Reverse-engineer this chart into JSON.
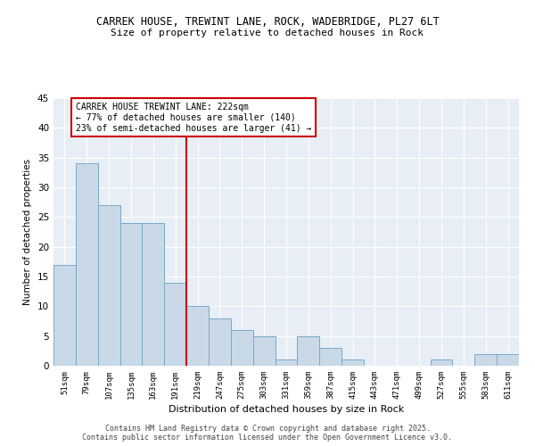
{
  "title_line1": "CARREK HOUSE, TREWINT LANE, ROCK, WADEBRIDGE, PL27 6LT",
  "title_line2": "Size of property relative to detached houses in Rock",
  "xlabel": "Distribution of detached houses by size in Rock",
  "ylabel": "Number of detached properties",
  "categories": [
    "51sqm",
    "79sqm",
    "107sqm",
    "135sqm",
    "163sqm",
    "191sqm",
    "219sqm",
    "247sqm",
    "275sqm",
    "303sqm",
    "331sqm",
    "359sqm",
    "387sqm",
    "415sqm",
    "443sqm",
    "471sqm",
    "499sqm",
    "527sqm",
    "555sqm",
    "583sqm",
    "611sqm"
  ],
  "values": [
    17,
    34,
    27,
    24,
    24,
    14,
    10,
    8,
    6,
    5,
    1,
    5,
    3,
    1,
    0,
    0,
    0,
    1,
    0,
    2,
    2
  ],
  "bar_color": "#c9d9e8",
  "bar_edge_color": "#7aaac8",
  "vline_color": "#cc0000",
  "vline_index": 6,
  "annotation_text": "CARREK HOUSE TREWINT LANE: 222sqm\n← 77% of detached houses are smaller (140)\n23% of semi-detached houses are larger (41) →",
  "annotation_box_edgecolor": "#cc0000",
  "ylim": [
    0,
    45
  ],
  "yticks": [
    0,
    5,
    10,
    15,
    20,
    25,
    30,
    35,
    40,
    45
  ],
  "background_color": "#e8eef5",
  "grid_color": "#ffffff",
  "footer_line1": "Contains HM Land Registry data © Crown copyright and database right 2025.",
  "footer_line2": "Contains public sector information licensed under the Open Government Licence v3.0."
}
